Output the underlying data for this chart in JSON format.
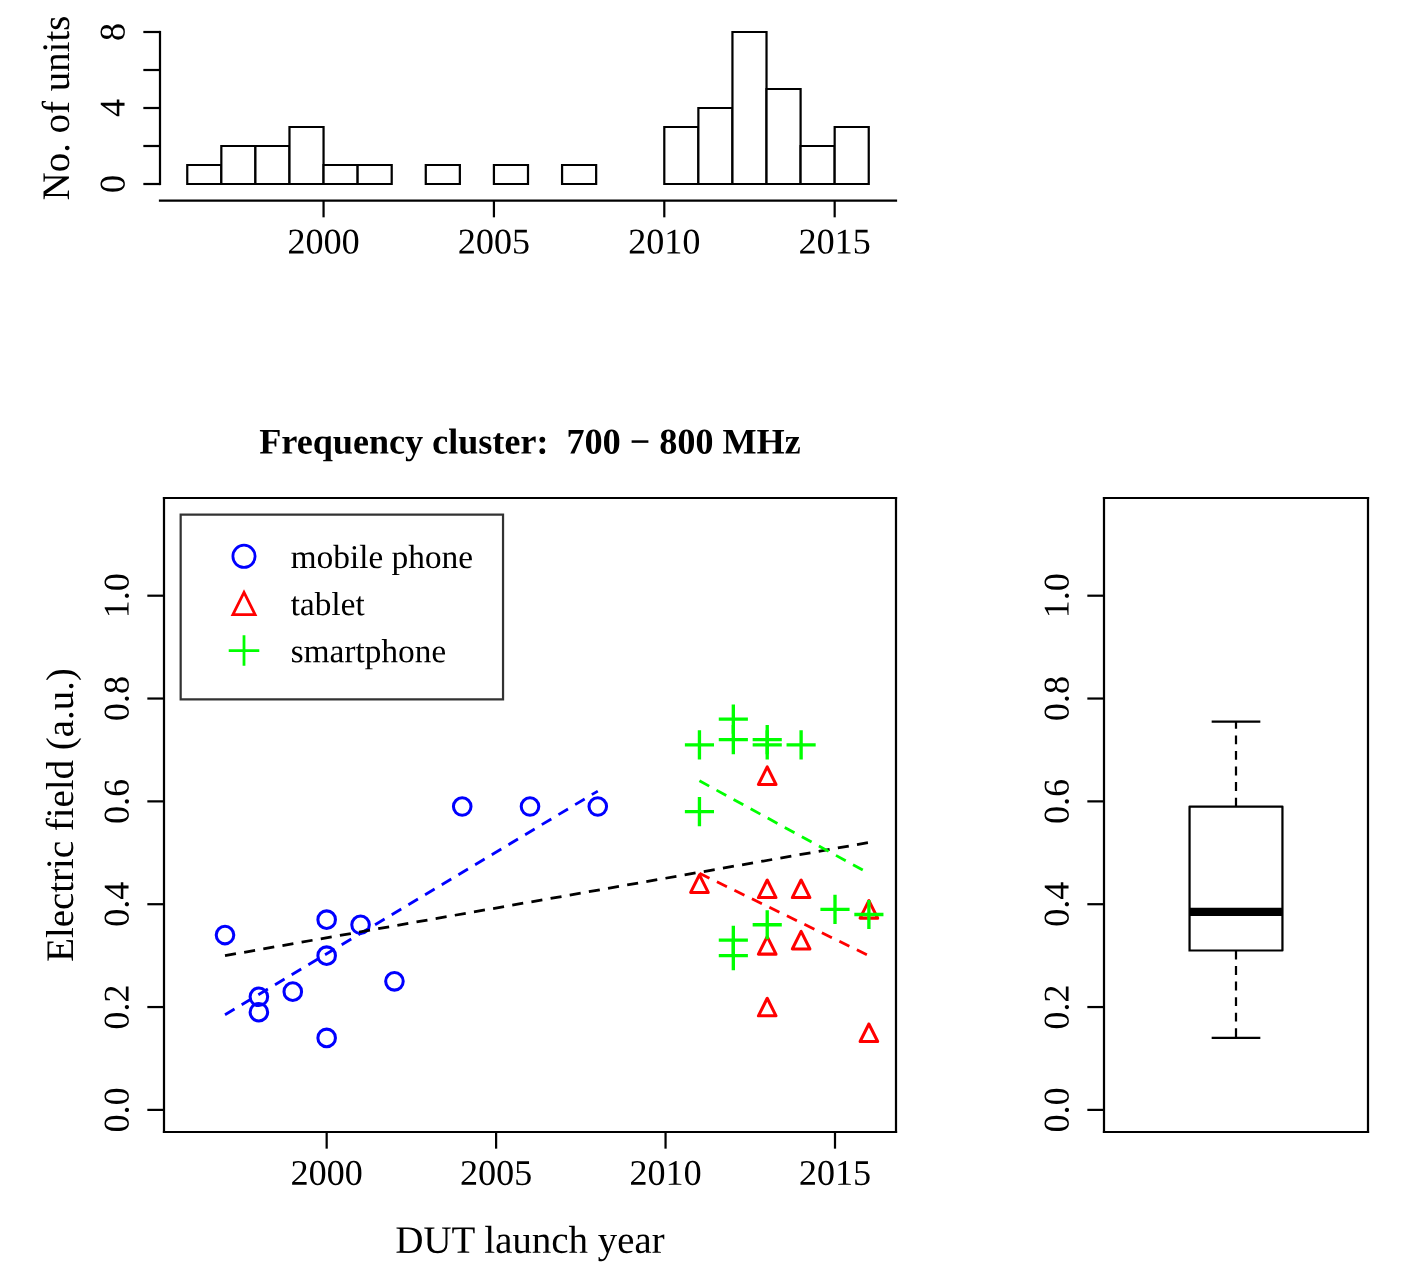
{
  "chart_data": [
    {
      "type": "histogram",
      "ylabel": "No. of units",
      "bins": [
        1996,
        1997,
        1998,
        1999,
        2000,
        2001,
        2002,
        2003,
        2004,
        2005,
        2006,
        2007,
        2008,
        2009,
        2010,
        2011,
        2012,
        2013,
        2014,
        2015,
        2016
      ],
      "values": [
        1,
        2,
        2,
        3,
        1,
        1,
        0,
        1,
        0,
        1,
        0,
        1,
        0,
        0,
        3,
        4,
        8,
        5,
        2,
        3
      ],
      "color": "#ffffff",
      "xlim": [
        1995.2,
        2016.8
      ],
      "xticks": [
        2000,
        2005,
        2010,
        2015
      ],
      "ylim": [
        0,
        8
      ],
      "yticks": [
        0,
        {
          "value": 2,
          "label": null
        },
        4,
        {
          "value": 6,
          "label": null
        },
        8
      ]
    },
    {
      "type": "scatter",
      "title": "Frequency cluster:  700 − 800 MHz",
      "xlabel": "DUT launch year",
      "ylabel": "Electric field (a.u.)",
      "legend": "top left",
      "xlim": [
        1995.2,
        2016.8
      ],
      "xticks": [
        2000,
        2005,
        2010,
        2015
      ],
      "ylim": [
        -0.043,
        1.19
      ],
      "yticks": [
        {
          "value": 0,
          "label": "0.0"
        },
        0.2,
        0.4,
        0.6,
        0.8,
        {
          "value": 1,
          "label": "1.0"
        }
      ],
      "series": [
        {
          "name": "mobile phone",
          "color": "#0000ff",
          "marker": "circle",
          "x": [
            1997,
            1998,
            1998,
            1999,
            2000,
            2000,
            2000,
            2001,
            2002,
            2004,
            2006,
            2008
          ],
          "values": [
            0.34,
            0.22,
            0.19,
            0.23,
            0.37,
            0.3,
            0.14,
            0.36,
            0.25,
            0.59,
            0.59,
            0.59
          ]
        },
        {
          "name": "tablet",
          "color": "#ff0000",
          "marker": "triangle",
          "x": [
            2011,
            2013,
            2014,
            2013,
            2014,
            2013,
            2016,
            2016,
            2013
          ],
          "values": [
            0.44,
            0.43,
            0.43,
            0.32,
            0.33,
            0.2,
            0.15,
            0.39,
            0.65
          ]
        },
        {
          "name": "smartphone",
          "color": "#00ff00",
          "marker": "cross",
          "x": [
            2011,
            2012,
            2012,
            2013,
            2013,
            2014,
            2011,
            2015,
            2016,
            2013,
            2012,
            2012
          ],
          "values": [
            0.71,
            0.76,
            0.72,
            0.72,
            0.71,
            0.71,
            0.58,
            0.39,
            0.38,
            0.36,
            0.33,
            0.3
          ]
        },
        {
          "type": "line",
          "color": "#0000ff",
          "line_style": "dashed",
          "marker": "none",
          "x": [
            1997,
            2008
          ],
          "values": [
            0.185,
            0.62
          ]
        },
        {
          "type": "line",
          "color": "#000000",
          "line_style": "dashed",
          "marker": "none",
          "x": [
            1997,
            2016
          ],
          "values": [
            0.3,
            0.52
          ]
        },
        {
          "type": "line",
          "color": "#00ff00",
          "line_style": "dashed",
          "marker": "none",
          "x": [
            2011,
            2016
          ],
          "values": [
            0.64,
            0.46
          ]
        },
        {
          "type": "line",
          "color": "#ff0000",
          "line_style": "dashed",
          "marker": "none",
          "x": [
            2011,
            2016
          ],
          "values": [
            0.46,
            0.3
          ]
        }
      ]
    },
    {
      "type": "box",
      "categories": [
        null
      ],
      "tick_labels": "y",
      "ylim": [
        -0.043,
        1.19
      ],
      "yticks": [
        {
          "value": 0,
          "label": "0.0"
        },
        0.2,
        0.4,
        0.6,
        0.8,
        {
          "value": 1,
          "label": "1.0"
        }
      ],
      "boxes": [
        {
          "low": 0.14,
          "q1": 0.31,
          "median": 0.385,
          "q3": 0.59,
          "high": 0.755
        }
      ]
    }
  ]
}
